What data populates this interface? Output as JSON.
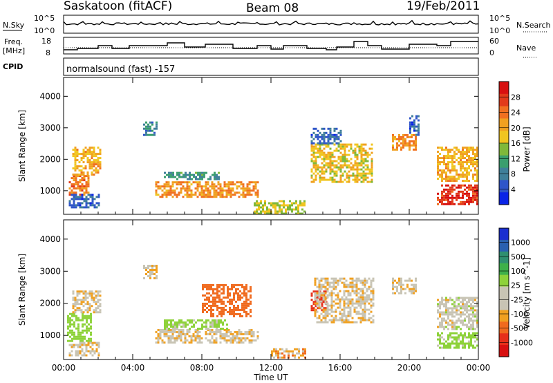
{
  "header": {
    "station": "Saskatoon (fitACF)",
    "beam": "Beam 08",
    "date": "19/Feb/2011"
  },
  "strip": {
    "nsky_label": "N.Sky",
    "nsky_top_tick": "10^5",
    "nsky_bottom_tick": "10^0",
    "nsearch_label": "N.Search",
    "nsearch_top_tick": "10^5",
    "nsearch_bottom_tick": "10^0",
    "freq_label_1": "Freq.",
    "freq_label_2": "[MHz]",
    "freq_top_tick": "18",
    "freq_bottom_tick": "8",
    "nave_label": "Nave",
    "nave_top_tick": "60",
    "nave_bottom_tick": "0",
    "cpid_label": "CPID",
    "cpid_text": "normalsound (fast) -157"
  },
  "chart_data": [
    {
      "type": "heatmap",
      "title": "",
      "xlabel": "Time UT",
      "ylabel": "Slant Range [km]",
      "xlim": [
        0,
        24
      ],
      "ylim": [
        250,
        4600
      ],
      "x_ticks": [
        "00:00",
        "04:00",
        "08:00",
        "12:00",
        "16:00",
        "20:00",
        "00:00"
      ],
      "y_ticks": [
        "1000",
        "2000",
        "3000",
        "4000"
      ],
      "colorbar": {
        "label": "Power [dB]",
        "range": [
          0,
          32
        ],
        "ticks": [
          "4",
          "8",
          "12",
          "16",
          "20",
          "24",
          "28"
        ],
        "colors": [
          "#0b24e6",
          "#2f55c9",
          "#3f7f99",
          "#3a9e6e",
          "#7fb83a",
          "#f0c520",
          "#f0a020",
          "#f07020",
          "#e23a1a",
          "#d81010"
        ]
      },
      "regions": [
        {
          "t": [
            0.3,
            1.5
          ],
          "r": [
            900,
            1500
          ],
          "value": 24
        },
        {
          "t": [
            0.3,
            2.0
          ],
          "r": [
            450,
            900
          ],
          "value": 6
        },
        {
          "t": [
            0.5,
            2.1
          ],
          "r": [
            1500,
            2400
          ],
          "value": 20
        },
        {
          "t": [
            4.6,
            5.4
          ],
          "r": [
            2800,
            3200
          ],
          "value": 8
        },
        {
          "t": [
            5.3,
            11.2
          ],
          "r": [
            800,
            1300
          ],
          "value": 22
        },
        {
          "t": [
            5.8,
            9.0
          ],
          "r": [
            1350,
            1600
          ],
          "value": 10
        },
        {
          "t": [
            11.0,
            14.0
          ],
          "r": [
            300,
            700
          ],
          "value": 16
        },
        {
          "t": [
            14.3,
            17.9
          ],
          "r": [
            1300,
            2500
          ],
          "value": 18
        },
        {
          "t": [
            14.3,
            16.0
          ],
          "r": [
            2500,
            3000
          ],
          "value": 6
        },
        {
          "t": [
            19.0,
            20.4
          ],
          "r": [
            2300,
            2800
          ],
          "value": 22
        },
        {
          "t": [
            20.0,
            20.6
          ],
          "r": [
            2800,
            3400
          ],
          "value": 6
        },
        {
          "t": [
            21.6,
            24.0
          ],
          "r": [
            600,
            1200
          ],
          "value": 28
        },
        {
          "t": [
            21.6,
            24.0
          ],
          "r": [
            1300,
            2400
          ],
          "value": 20
        }
      ]
    },
    {
      "type": "heatmap",
      "title": "",
      "xlabel": "Time UT",
      "ylabel": "Slant Range [km]",
      "xlim": [
        0,
        24
      ],
      "ylim": [
        250,
        4600
      ],
      "x_ticks": [
        "00:00",
        "04:00",
        "08:00",
        "12:00",
        "16:00",
        "20:00",
        "00:00"
      ],
      "y_ticks": [
        "1000",
        "2000",
        "3000",
        "4000"
      ],
      "colorbar": {
        "label": "Velocity [m s^-1]",
        "ticks": [
          "-1000",
          "-500",
          "-100",
          "-25",
          "25",
          "100",
          "500",
          "1000"
        ],
        "colors": [
          "#d81010",
          "#e6301a",
          "#f06a1e",
          "#f0a020",
          "#c8c4b4",
          "#c8c4b4",
          "#8ed23a",
          "#3eb04a",
          "#2f8f70",
          "#2a60b0",
          "#1a2ed0"
        ]
      },
      "regions": [
        {
          "t": [
            0.2,
            1.6
          ],
          "r": [
            800,
            1700
          ],
          "value": 200
        },
        {
          "t": [
            0.3,
            2.0
          ],
          "r": [
            400,
            800
          ],
          "value": 0
        },
        {
          "t": [
            0.5,
            2.1
          ],
          "r": [
            1700,
            2400
          ],
          "value": 0
        },
        {
          "t": [
            4.6,
            5.4
          ],
          "r": [
            2800,
            3200
          ],
          "value": 0
        },
        {
          "t": [
            5.3,
            11.2
          ],
          "r": [
            800,
            1200
          ],
          "value": 0
        },
        {
          "t": [
            5.8,
            9.5
          ],
          "r": [
            1200,
            1500
          ],
          "value": 150
        },
        {
          "t": [
            8.0,
            10.8
          ],
          "r": [
            1600,
            2600
          ],
          "value": -350
        },
        {
          "t": [
            12.0,
            14.0
          ],
          "r": [
            300,
            600
          ],
          "value": -70
        },
        {
          "t": [
            14.3,
            15.2
          ],
          "r": [
            1800,
            2400
          ],
          "value": -800
        },
        {
          "t": [
            14.5,
            17.9
          ],
          "r": [
            1400,
            2800
          ],
          "value": 0
        },
        {
          "t": [
            19.0,
            20.4
          ],
          "r": [
            2300,
            2800
          ],
          "value": 0
        },
        {
          "t": [
            21.6,
            24.0
          ],
          "r": [
            600,
            1100
          ],
          "value": 150
        },
        {
          "t": [
            21.6,
            24.0
          ],
          "r": [
            1200,
            2200
          ],
          "value": 40
        }
      ]
    }
  ]
}
